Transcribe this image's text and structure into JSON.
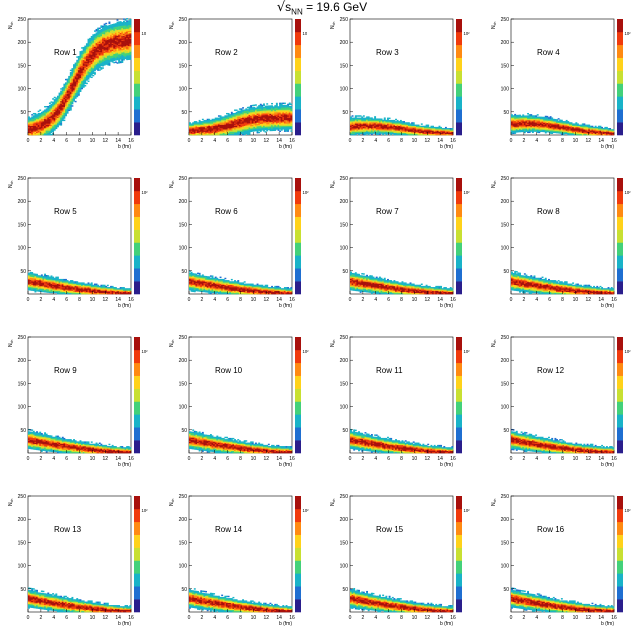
{
  "figure": {
    "title_prefix": "√",
    "title_s": "s",
    "title_sub": "NN",
    "title_suffix": " = 19.6 GeV"
  },
  "shared_axes": {
    "xlabel": "b (fm)",
    "ylabel": "N_ch",
    "ylabel_base": "N",
    "ylabel_sub": "ch",
    "xlim": [
      0,
      16
    ],
    "ylim": [
      0,
      250
    ],
    "x_ticks": [
      "0",
      "2",
      "4",
      "6",
      "8",
      "10",
      "12",
      "14",
      "16"
    ],
    "y_ticks": [
      "50",
      "100",
      "150",
      "200",
      "250"
    ],
    "z_scale": "log",
    "palette": [
      "#2a1e8c",
      "#1f6fd1",
      "#19b3c8",
      "#43d17a",
      "#c8e032",
      "#ffd21a",
      "#ff8a12",
      "#f03a0c",
      "#a8100c"
    ]
  },
  "chart_data": [
    {
      "type": "heatmap",
      "label": "Row 1",
      "mean_start": 12,
      "mean_end": 205,
      "shape": "sigmoid",
      "spread": 14,
      "zmax_tick": "10"
    },
    {
      "type": "heatmap",
      "label": "Row 2",
      "mean_start": 10,
      "mean_end": 38,
      "shape": "sigmoid",
      "spread": 9,
      "zmax_tick": "10"
    },
    {
      "type": "heatmap",
      "label": "Row 3",
      "mean_start": 18,
      "mean_end": 4,
      "shape": "hump",
      "spread": 7,
      "zmax_tick": "10²"
    },
    {
      "type": "heatmap",
      "label": "Row 4",
      "mean_start": 24,
      "mean_end": 3,
      "shape": "hump",
      "spread": 7,
      "zmax_tick": "10²"
    },
    {
      "type": "heatmap",
      "label": "Row 5",
      "mean_start": 28,
      "mean_end": 2,
      "shape": "decay",
      "spread": 7,
      "zmax_tick": "10²"
    },
    {
      "type": "heatmap",
      "label": "Row 6",
      "mean_start": 28,
      "mean_end": 2,
      "shape": "decay",
      "spread": 7,
      "zmax_tick": "10²"
    },
    {
      "type": "heatmap",
      "label": "Row 7",
      "mean_start": 28,
      "mean_end": 2,
      "shape": "decay",
      "spread": 7,
      "zmax_tick": "10²"
    },
    {
      "type": "heatmap",
      "label": "Row 8",
      "mean_start": 28,
      "mean_end": 2,
      "shape": "decay",
      "spread": 7,
      "zmax_tick": "10²"
    },
    {
      "type": "heatmap",
      "label": "Row 9",
      "mean_start": 29,
      "mean_end": 2,
      "shape": "decay",
      "spread": 7,
      "zmax_tick": "10²"
    },
    {
      "type": "heatmap",
      "label": "Row 10",
      "mean_start": 29,
      "mean_end": 2,
      "shape": "decay",
      "spread": 7,
      "zmax_tick": "10²"
    },
    {
      "type": "heatmap",
      "label": "Row 11",
      "mean_start": 29,
      "mean_end": 2,
      "shape": "decay",
      "spread": 7,
      "zmax_tick": "10²"
    },
    {
      "type": "heatmap",
      "label": "Row 12",
      "mean_start": 29,
      "mean_end": 2,
      "shape": "decay",
      "spread": 7,
      "zmax_tick": "10²"
    },
    {
      "type": "heatmap",
      "label": "Row 13",
      "mean_start": 30,
      "mean_end": 2,
      "shape": "decay",
      "spread": 7,
      "zmax_tick": "10²"
    },
    {
      "type": "heatmap",
      "label": "Row 14",
      "mean_start": 30,
      "mean_end": 2,
      "shape": "decay",
      "spread": 7,
      "zmax_tick": "10²"
    },
    {
      "type": "heatmap",
      "label": "Row 15",
      "mean_start": 30,
      "mean_end": 2,
      "shape": "decay",
      "spread": 7,
      "zmax_tick": "10²"
    },
    {
      "type": "heatmap",
      "label": "Row 16",
      "mean_start": 30,
      "mean_end": 2,
      "shape": "decay",
      "spread": 7,
      "zmax_tick": "10²"
    }
  ]
}
